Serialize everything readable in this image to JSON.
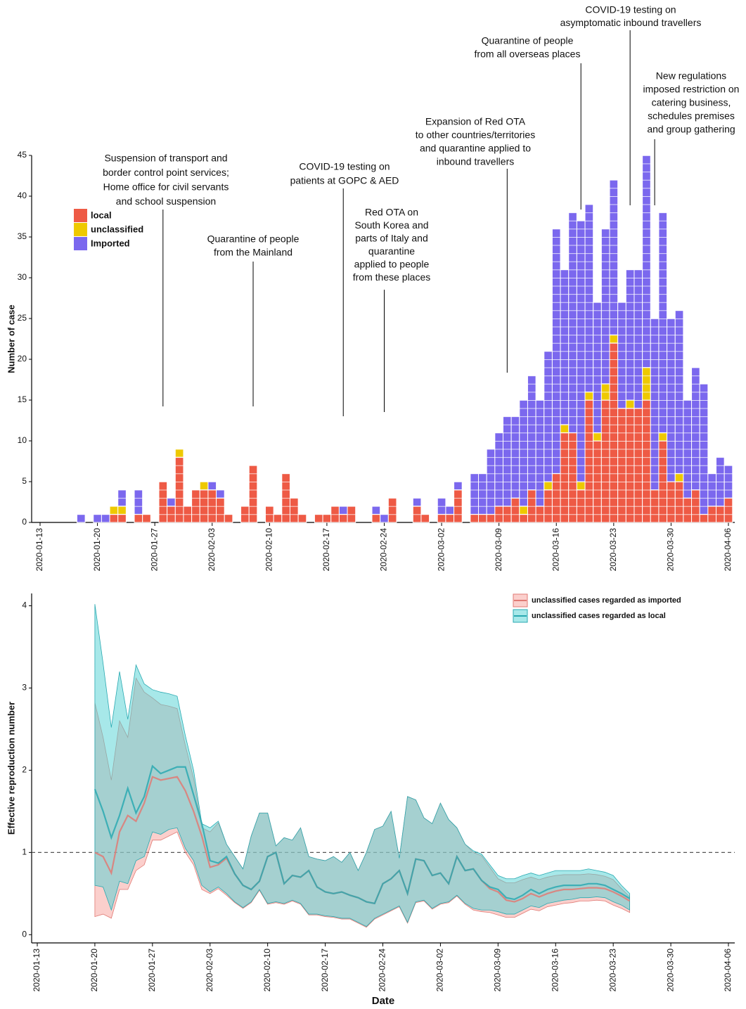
{
  "chart_data": [
    {
      "type": "bar",
      "stacked": true,
      "ylabel": "Number of case",
      "xlim": [
        "2020-01-13",
        "2020-04-06"
      ],
      "xticks": [
        "2020-01-13",
        "2020-01-20",
        "2020-01-27",
        "2020-02-03",
        "2020-02-10",
        "2020-02-17",
        "2020-02-24",
        "2020-03-02",
        "2020-03-09",
        "2020-03-16",
        "2020-03-23",
        "2020-03-30",
        "2020-04-06"
      ],
      "ylim": [
        0,
        45
      ],
      "yticks": [
        0,
        5,
        10,
        15,
        20,
        25,
        30,
        35,
        40,
        45
      ],
      "grid": false,
      "legend": "top-left",
      "x": [
        "2020-01-18",
        "2020-01-20",
        "2020-01-21",
        "2020-01-22",
        "2020-01-23",
        "2020-01-25",
        "2020-01-26",
        "2020-01-28",
        "2020-01-29",
        "2020-01-30",
        "2020-01-31",
        "2020-02-01",
        "2020-02-02",
        "2020-02-03",
        "2020-02-04",
        "2020-02-05",
        "2020-02-07",
        "2020-02-08",
        "2020-02-10",
        "2020-02-11",
        "2020-02-12",
        "2020-02-13",
        "2020-02-14",
        "2020-02-16",
        "2020-02-17",
        "2020-02-18",
        "2020-02-19",
        "2020-02-20",
        "2020-02-23",
        "2020-02-24",
        "2020-02-25",
        "2020-02-28",
        "2020-02-29",
        "2020-03-02",
        "2020-03-03",
        "2020-03-04",
        "2020-03-06",
        "2020-03-07",
        "2020-03-08",
        "2020-03-09",
        "2020-03-10",
        "2020-03-11",
        "2020-03-12",
        "2020-03-13",
        "2020-03-14",
        "2020-03-15",
        "2020-03-16",
        "2020-03-17",
        "2020-03-18",
        "2020-03-19",
        "2020-03-20",
        "2020-03-21",
        "2020-03-22",
        "2020-03-23",
        "2020-03-24",
        "2020-03-25",
        "2020-03-26",
        "2020-03-27",
        "2020-03-28",
        "2020-03-29",
        "2020-03-30",
        "2020-03-31",
        "2020-04-01",
        "2020-04-02",
        "2020-04-03",
        "2020-04-04",
        "2020-04-05",
        "2020-04-06"
      ],
      "series": [
        {
          "name": "local",
          "color": "#ee5a45",
          "values": [
            0,
            0,
            0,
            1,
            1,
            1,
            1,
            5,
            2,
            8,
            2,
            4,
            4,
            4,
            3,
            1,
            2,
            7,
            2,
            1,
            6,
            3,
            1,
            1,
            1,
            2,
            1,
            2,
            1,
            0,
            3,
            2,
            1,
            1,
            1,
            4,
            1,
            1,
            1,
            2,
            2,
            3,
            1,
            4,
            2,
            4,
            6,
            11,
            11,
            4,
            15,
            10,
            15,
            22,
            14,
            14,
            14,
            15,
            4,
            10,
            5,
            5,
            3,
            4,
            1,
            2,
            2,
            3
          ]
        },
        {
          "name": "unclassified",
          "color": "#eec900",
          "values": [
            0,
            0,
            0,
            1,
            1,
            0,
            0,
            0,
            0,
            1,
            0,
            0,
            1,
            0,
            0,
            0,
            0,
            0,
            0,
            0,
            0,
            0,
            0,
            0,
            0,
            0,
            0,
            0,
            0,
            0,
            0,
            0,
            0,
            0,
            0,
            0,
            0,
            0,
            0,
            0,
            0,
            0,
            1,
            0,
            0,
            1,
            0,
            1,
            0,
            1,
            1,
            1,
            2,
            1,
            0,
            1,
            0,
            4,
            0,
            1,
            0,
            1,
            0,
            0,
            0,
            0,
            0,
            0
          ]
        },
        {
          "name": "Imported",
          "color": "#7b68ee",
          "values": [
            1,
            1,
            1,
            0,
            2,
            3,
            0,
            0,
            1,
            0,
            0,
            0,
            0,
            1,
            1,
            0,
            0,
            0,
            0,
            0,
            0,
            0,
            0,
            0,
            0,
            0,
            1,
            0,
            1,
            1,
            0,
            1,
            0,
            2,
            1,
            1,
            5,
            5,
            8,
            9,
            11,
            10,
            13,
            14,
            13,
            16,
            30,
            19,
            27,
            32,
            23,
            16,
            19,
            19,
            13,
            16,
            17,
            26,
            21,
            27,
            20,
            20,
            12,
            15,
            16,
            4,
            6,
            4
          ]
        }
      ],
      "annotations": [
        {
          "x": "2020-01-28",
          "lines": [
            "Suspension of transport and",
            "border control point services;",
            "Home office for civil servants",
            "and school suspension"
          ]
        },
        {
          "x": "2020-02-08",
          "lines": [
            "Quarantine of people",
            "from the Mainland"
          ]
        },
        {
          "x": "2020-02-19",
          "lines": [
            "COVID-19 testing on",
            "patients at GOPC & AED"
          ]
        },
        {
          "x": "2020-02-24",
          "lines": [
            "Red OTA on",
            "South Korea and",
            "parts of Italy and",
            "quarantine",
            "applied to people",
            "from these places"
          ]
        },
        {
          "x": "2020-03-10",
          "lines": [
            "Expansion of Red OTA",
            "to other countries/territories",
            "and quarantine applied to",
            "inbound travellers"
          ]
        },
        {
          "x": "2020-03-19",
          "lines": [
            "Quarantine of people",
            "from all overseas places"
          ]
        },
        {
          "x": "2020-03-25",
          "lines": [
            "COVID-19 testing on",
            "asymptomatic inbound travellers"
          ]
        },
        {
          "x": "2020-03-28",
          "lines": [
            "New regulations",
            "imposed restriction on",
            "catering business,",
            "schedules premises",
            "and group gathering"
          ]
        }
      ]
    },
    {
      "type": "line",
      "ylabel": "Effective reproduction number",
      "xlabel": "Date",
      "xlim": [
        "2020-01-13",
        "2020-04-06"
      ],
      "xticks": [
        "2020-01-13",
        "2020-01-20",
        "2020-01-27",
        "2020-02-03",
        "2020-02-10",
        "2020-02-17",
        "2020-02-24",
        "2020-03-02",
        "2020-03-09",
        "2020-03-16",
        "2020-03-23",
        "2020-03-30",
        "2020-04-06"
      ],
      "ylim": [
        -0.1,
        4.15
      ],
      "yticks": [
        0,
        1,
        2,
        3,
        4
      ],
      "grid": false,
      "legend": "top-right",
      "hline": 1,
      "x": [
        "2020-01-20",
        "2020-01-21",
        "2020-01-22",
        "2020-01-23",
        "2020-01-24",
        "2020-01-25",
        "2020-01-26",
        "2020-01-27",
        "2020-01-28",
        "2020-01-29",
        "2020-01-30",
        "2020-01-31",
        "2020-02-01",
        "2020-02-02",
        "2020-02-03",
        "2020-02-04",
        "2020-02-05",
        "2020-02-06",
        "2020-02-07",
        "2020-02-08",
        "2020-02-09",
        "2020-02-10",
        "2020-02-11",
        "2020-02-12",
        "2020-02-13",
        "2020-02-14",
        "2020-02-15",
        "2020-02-16",
        "2020-02-17",
        "2020-02-18",
        "2020-02-19",
        "2020-02-20",
        "2020-02-21",
        "2020-02-22",
        "2020-02-23",
        "2020-02-24",
        "2020-02-25",
        "2020-02-26",
        "2020-02-27",
        "2020-02-28",
        "2020-02-29",
        "2020-03-01",
        "2020-03-02",
        "2020-03-03",
        "2020-03-04",
        "2020-03-05",
        "2020-03-06",
        "2020-03-07",
        "2020-03-08",
        "2020-03-09",
        "2020-03-10",
        "2020-03-11",
        "2020-03-12",
        "2020-03-13",
        "2020-03-14",
        "2020-03-15",
        "2020-03-16",
        "2020-03-17",
        "2020-03-18",
        "2020-03-19",
        "2020-03-20",
        "2020-03-21",
        "2020-03-22",
        "2020-03-23",
        "2020-03-24",
        "2020-03-25"
      ],
      "series": [
        {
          "name": "unclassified cases regarded as imported",
          "color": "#e07a74",
          "band_color": "#f7a09a",
          "values": [
            1.0,
            0.95,
            0.75,
            1.25,
            1.45,
            1.38,
            1.6,
            1.92,
            1.88,
            1.9,
            1.92,
            1.75,
            1.5,
            1.2,
            0.82,
            0.85,
            0.93,
            0.74,
            0.6,
            0.55,
            0.65,
            0.95,
            1.0,
            0.62,
            0.72,
            0.7,
            0.78,
            0.58,
            0.52,
            0.5,
            0.52,
            0.48,
            0.45,
            0.4,
            0.38,
            0.62,
            0.68,
            0.78,
            0.5,
            0.92,
            0.9,
            0.72,
            0.75,
            0.62,
            0.95,
            0.78,
            0.8,
            0.66,
            0.56,
            0.52,
            0.42,
            0.4,
            0.44,
            0.5,
            0.46,
            0.5,
            0.53,
            0.55,
            0.55,
            0.56,
            0.57,
            0.57,
            0.56,
            0.52,
            0.47,
            0.41
          ],
          "upper": [
            2.82,
            2.4,
            1.88,
            2.6,
            2.4,
            3.12,
            2.95,
            2.88,
            2.8,
            2.78,
            2.75,
            2.3,
            1.9,
            1.3,
            1.25,
            1.36,
            1.1,
            0.95,
            0.8,
            1.2,
            1.48,
            1.48,
            1.08,
            1.18,
            1.15,
            1.3,
            0.95,
            0.92,
            0.9,
            0.95,
            0.88,
            1.0,
            0.78,
            1.0,
            1.28,
            1.32,
            1.5,
            0.93,
            1.68,
            1.64,
            1.42,
            1.35,
            1.6,
            1.4,
            1.3,
            1.1,
            1.0,
            0.96,
            0.82,
            0.68,
            0.63,
            0.63,
            0.67,
            0.7,
            0.67,
            0.7,
            0.72,
            0.73,
            0.73,
            0.73,
            0.74,
            0.73,
            0.71,
            0.67,
            0.56,
            0.46
          ],
          "lower": [
            0.22,
            0.25,
            0.2,
            0.55,
            0.55,
            0.78,
            0.85,
            1.15,
            1.15,
            1.2,
            1.25,
            1.0,
            0.85,
            0.55,
            0.5,
            0.56,
            0.48,
            0.39,
            0.32,
            0.39,
            0.54,
            0.37,
            0.39,
            0.37,
            0.41,
            0.37,
            0.24,
            0.24,
            0.22,
            0.21,
            0.19,
            0.19,
            0.14,
            0.09,
            0.19,
            0.24,
            0.29,
            0.34,
            0.14,
            0.39,
            0.41,
            0.31,
            0.37,
            0.39,
            0.47,
            0.37,
            0.3,
            0.28,
            0.27,
            0.24,
            0.21,
            0.21,
            0.26,
            0.31,
            0.29,
            0.34,
            0.36,
            0.38,
            0.39,
            0.41,
            0.41,
            0.42,
            0.41,
            0.36,
            0.32,
            0.27
          ]
        },
        {
          "name": "unclassified cases regarded as local",
          "color": "#2aa9b1",
          "band_color": "#4fd2d4",
          "values": [
            1.77,
            1.5,
            1.18,
            1.45,
            1.78,
            1.48,
            1.68,
            2.05,
            1.96,
            2.0,
            2.04,
            2.04,
            1.7,
            1.35,
            0.9,
            0.87,
            0.95,
            0.74,
            0.6,
            0.55,
            0.65,
            0.95,
            1.0,
            0.62,
            0.72,
            0.7,
            0.78,
            0.58,
            0.52,
            0.5,
            0.52,
            0.48,
            0.45,
            0.4,
            0.38,
            0.62,
            0.68,
            0.78,
            0.5,
            0.92,
            0.9,
            0.72,
            0.75,
            0.62,
            0.95,
            0.78,
            0.8,
            0.66,
            0.58,
            0.55,
            0.45,
            0.43,
            0.48,
            0.55,
            0.5,
            0.55,
            0.58,
            0.6,
            0.6,
            0.6,
            0.62,
            0.62,
            0.6,
            0.55,
            0.5,
            0.44
          ],
          "upper": [
            4.02,
            3.3,
            2.52,
            3.2,
            2.62,
            3.28,
            3.05,
            2.98,
            2.95,
            2.93,
            2.9,
            2.42,
            2.0,
            1.35,
            1.3,
            1.38,
            1.1,
            0.95,
            0.8,
            1.2,
            1.48,
            1.48,
            1.08,
            1.18,
            1.15,
            1.3,
            0.95,
            0.92,
            0.9,
            0.95,
            0.88,
            1.0,
            0.78,
            1.0,
            1.28,
            1.32,
            1.5,
            0.93,
            1.68,
            1.64,
            1.42,
            1.35,
            1.6,
            1.4,
            1.3,
            1.1,
            1.02,
            0.98,
            0.85,
            0.72,
            0.68,
            0.68,
            0.72,
            0.75,
            0.72,
            0.75,
            0.78,
            0.78,
            0.78,
            0.78,
            0.8,
            0.78,
            0.76,
            0.72,
            0.6,
            0.5
          ],
          "lower": [
            0.6,
            0.58,
            0.3,
            0.65,
            0.62,
            0.9,
            0.95,
            1.25,
            1.22,
            1.28,
            1.3,
            1.05,
            0.9,
            0.6,
            0.52,
            0.58,
            0.5,
            0.4,
            0.33,
            0.4,
            0.55,
            0.38,
            0.4,
            0.38,
            0.42,
            0.38,
            0.25,
            0.25,
            0.23,
            0.22,
            0.2,
            0.2,
            0.15,
            0.1,
            0.2,
            0.25,
            0.3,
            0.35,
            0.15,
            0.4,
            0.42,
            0.32,
            0.38,
            0.4,
            0.48,
            0.38,
            0.32,
            0.3,
            0.3,
            0.28,
            0.25,
            0.25,
            0.3,
            0.35,
            0.33,
            0.38,
            0.4,
            0.42,
            0.43,
            0.45,
            0.45,
            0.46,
            0.45,
            0.4,
            0.36,
            0.3
          ]
        }
      ]
    }
  ]
}
